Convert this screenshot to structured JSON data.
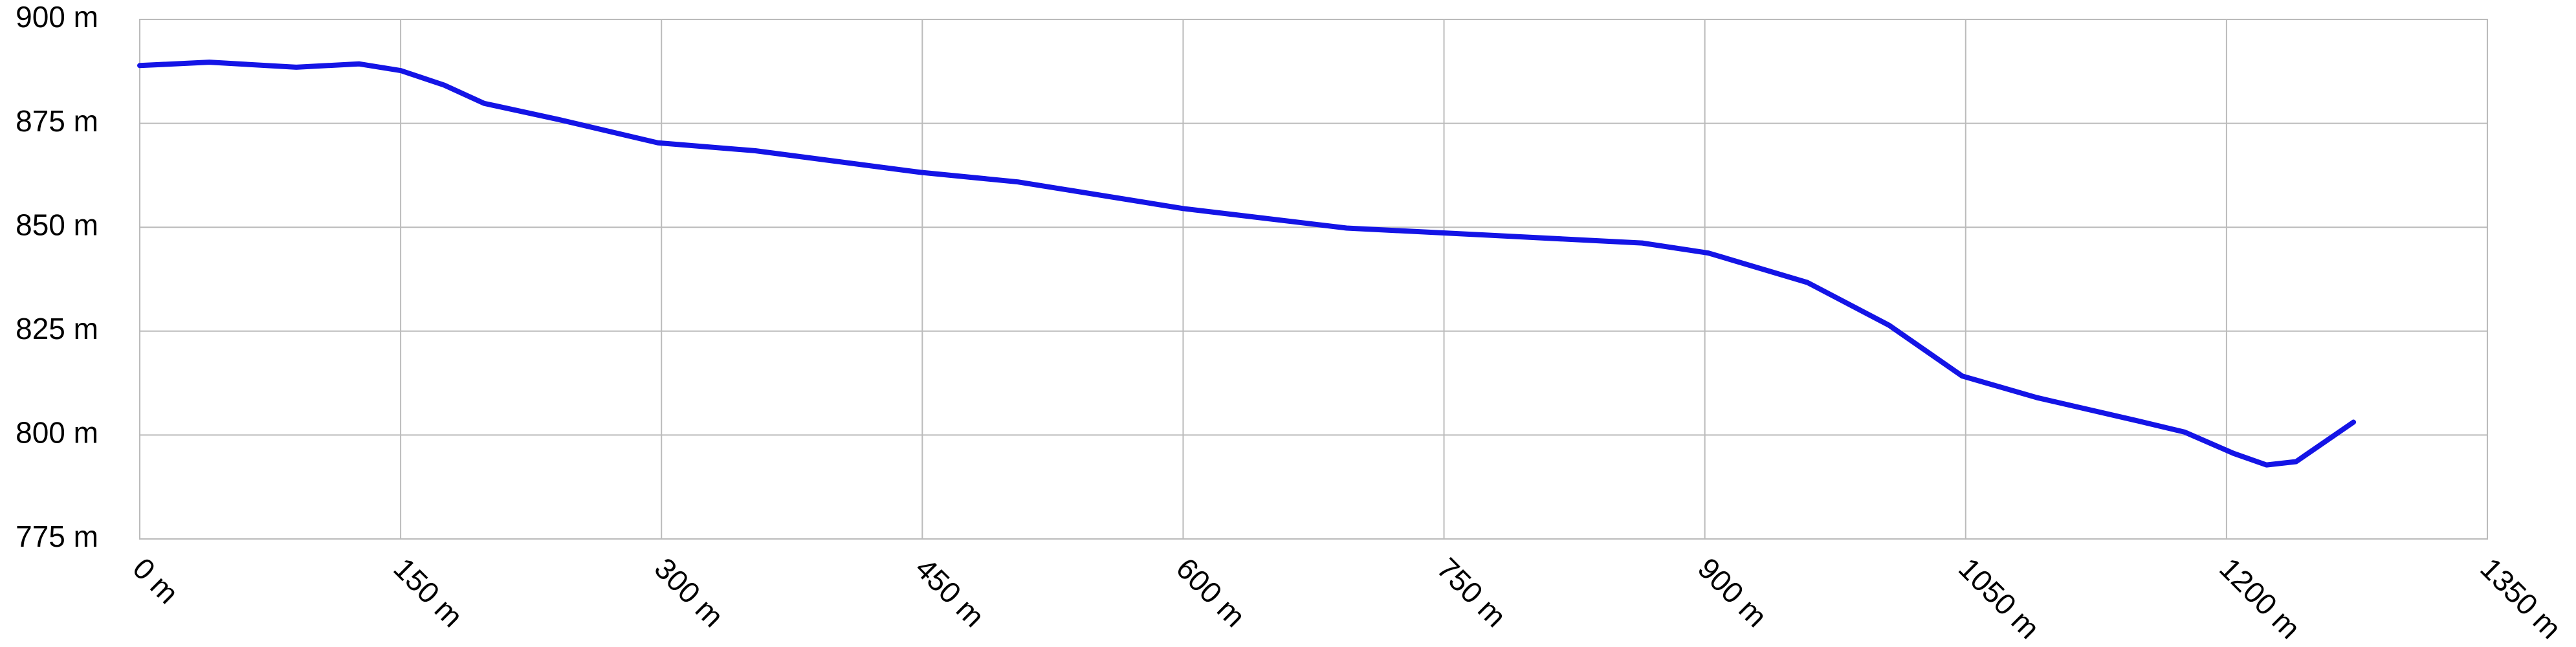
{
  "chart_data": {
    "type": "line",
    "x": [
      0,
      40,
      90,
      126,
      150,
      175,
      198,
      241,
      298,
      354,
      449,
      505,
      600,
      694,
      770,
      864,
      902,
      959,
      1006,
      1048,
      1091,
      1148,
      1176,
      1204,
      1223,
      1240,
      1273
    ],
    "series": [
      {
        "color": "#1414e6",
        "values": [
          888.9,
          889.7,
          888.5,
          889.3,
          887.7,
          884.2,
          879.8,
          875.9,
          870.3,
          868.4,
          863.2,
          860.9,
          854.5,
          849.8,
          848.2,
          846.2,
          843.8,
          836.7,
          826.4,
          814.2,
          809.0,
          803.5,
          800.7,
          795.6,
          792.8,
          793.6,
          803.1
        ]
      }
    ],
    "xlim": [
      0,
      1350
    ],
    "xticks": [
      {
        "value": 0,
        "label": "0 m"
      },
      {
        "value": 150,
        "label": "150 m"
      },
      {
        "value": 300,
        "label": "300 m"
      },
      {
        "value": 450,
        "label": "450 m"
      },
      {
        "value": 600,
        "label": "600 m"
      },
      {
        "value": 750,
        "label": "750 m"
      },
      {
        "value": 900,
        "label": "900 m"
      },
      {
        "value": 1050,
        "label": "1050 m"
      },
      {
        "value": 1200,
        "label": "1200 m"
      },
      {
        "value": 1350,
        "label": "1350 m"
      }
    ],
    "ylim": [
      775,
      900
    ],
    "yticks": [
      {
        "value": 775,
        "label": "775 m"
      },
      {
        "value": 800,
        "label": "800 m"
      },
      {
        "value": 825,
        "label": "825 m"
      },
      {
        "value": 850,
        "label": "850 m"
      },
      {
        "value": 875,
        "label": "875 m"
      },
      {
        "value": 900,
        "label": "900 m"
      }
    ],
    "grid": true
  }
}
